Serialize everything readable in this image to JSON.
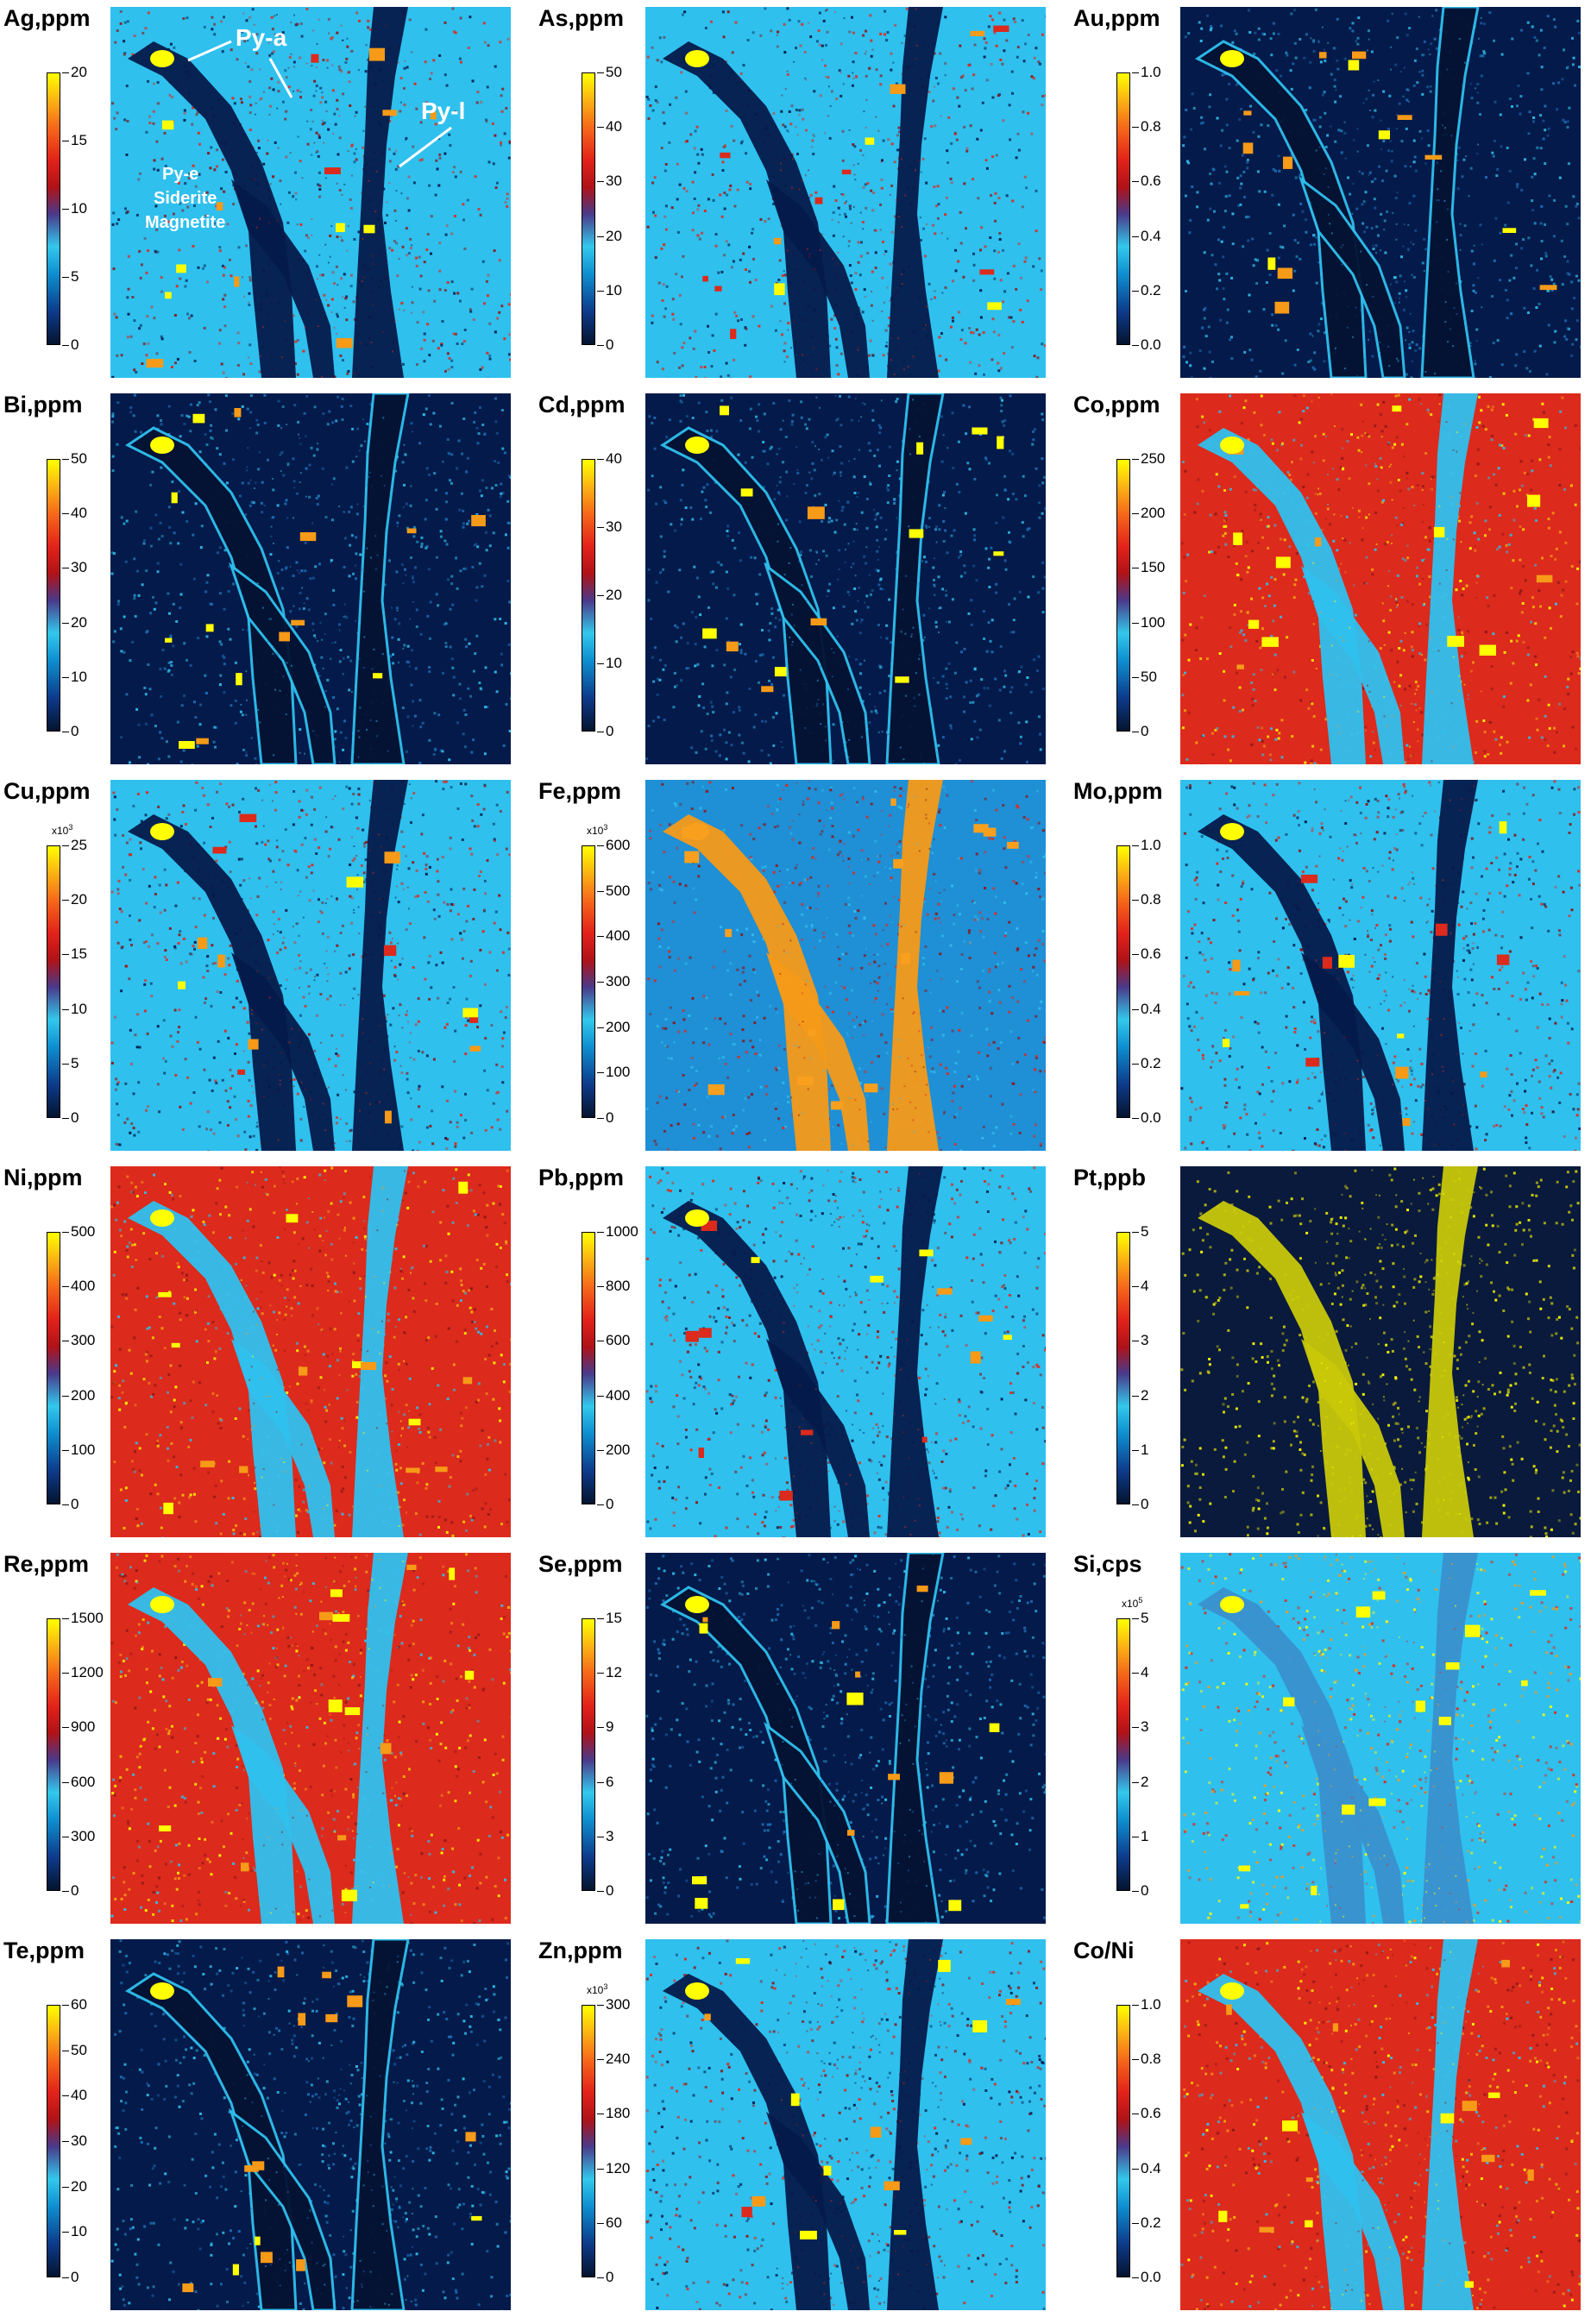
{
  "panels": [
    {
      "title": "Ag,ppm",
      "ticks": [
        "0",
        "5",
        "10",
        "15",
        "20"
      ],
      "style": "cyan"
    },
    {
      "title": "As,ppm",
      "ticks": [
        "0",
        "10",
        "20",
        "30",
        "40",
        "50"
      ],
      "style": "cyan"
    },
    {
      "title": "Au,ppm",
      "ticks": [
        "0.0",
        "0.2",
        "0.4",
        "0.6",
        "0.8",
        "1.0"
      ],
      "style": "dark"
    },
    {
      "title": "Bi,ppm",
      "ticks": [
        "0",
        "10",
        "20",
        "30",
        "40",
        "50"
      ],
      "style": "dark"
    },
    {
      "title": "Cd,ppm",
      "ticks": [
        "0",
        "10",
        "20",
        "30",
        "40"
      ],
      "style": "dark"
    },
    {
      "title": "Co,ppm",
      "ticks": [
        "0",
        "50",
        "100",
        "150",
        "200",
        "250"
      ],
      "style": "red"
    },
    {
      "title": "Cu,ppm",
      "multiplier": "x10",
      "multiplier_exp": "3",
      "ticks": [
        "0",
        "5",
        "10",
        "15",
        "20",
        "25"
      ],
      "style": "cyan"
    },
    {
      "title": "Fe,ppm",
      "multiplier": "x10",
      "multiplier_exp": "3",
      "ticks": [
        "0",
        "100",
        "200",
        "300",
        "400",
        "500",
        "600"
      ],
      "style": "fe"
    },
    {
      "title": "Mo,ppm",
      "ticks": [
        "0.0",
        "0.2",
        "0.4",
        "0.6",
        "0.8",
        "1.0"
      ],
      "style": "cyan"
    },
    {
      "title": "Ni,ppm",
      "ticks": [
        "0",
        "100",
        "200",
        "300",
        "400",
        "500"
      ],
      "style": "red"
    },
    {
      "title": "Pb,ppm",
      "ticks": [
        "0",
        "200",
        "400",
        "600",
        "800",
        "1000"
      ],
      "style": "cyan"
    },
    {
      "title": "Pt,ppb",
      "ticks": [
        "0",
        "1",
        "2",
        "3",
        "4",
        "5"
      ],
      "style": "pt"
    },
    {
      "title": "Re,ppm",
      "ticks": [
        "0",
        "300",
        "600",
        "900",
        "1200",
        "1500"
      ],
      "style": "red"
    },
    {
      "title": "Se,ppm",
      "ticks": [
        "0",
        "3",
        "6",
        "9",
        "12",
        "15"
      ],
      "style": "dark"
    },
    {
      "title": "Si,cps",
      "multiplier": "x10",
      "multiplier_exp": "5",
      "ticks": [
        "0",
        "1",
        "2",
        "3",
        "4",
        "5"
      ],
      "style": "si"
    },
    {
      "title": "Te,ppm",
      "ticks": [
        "0",
        "10",
        "20",
        "30",
        "40",
        "50",
        "60"
      ],
      "style": "dark"
    },
    {
      "title": "Zn,ppm",
      "multiplier": "x10",
      "multiplier_exp": "3",
      "ticks": [
        "0",
        "60",
        "120",
        "180",
        "240",
        "300"
      ],
      "style": "cyan"
    },
    {
      "title": "Co/Ni",
      "ticks": [
        "0.0",
        "0.2",
        "0.4",
        "0.6",
        "0.8",
        "1.0"
      ],
      "style": "red"
    }
  ],
  "annotations": {
    "py_a": "Py-a",
    "py_l": "Py-l",
    "py_e": "Py-e",
    "siderite": "Siderite",
    "magnetite": "Magnetite"
  },
  "colors": {
    "navy": "#041a4a",
    "cyan": "#2fc0ee",
    "red": "#dc2a1c",
    "orange": "#f69a18",
    "yellow": "#ffff00",
    "darkred": "#8a1818"
  }
}
